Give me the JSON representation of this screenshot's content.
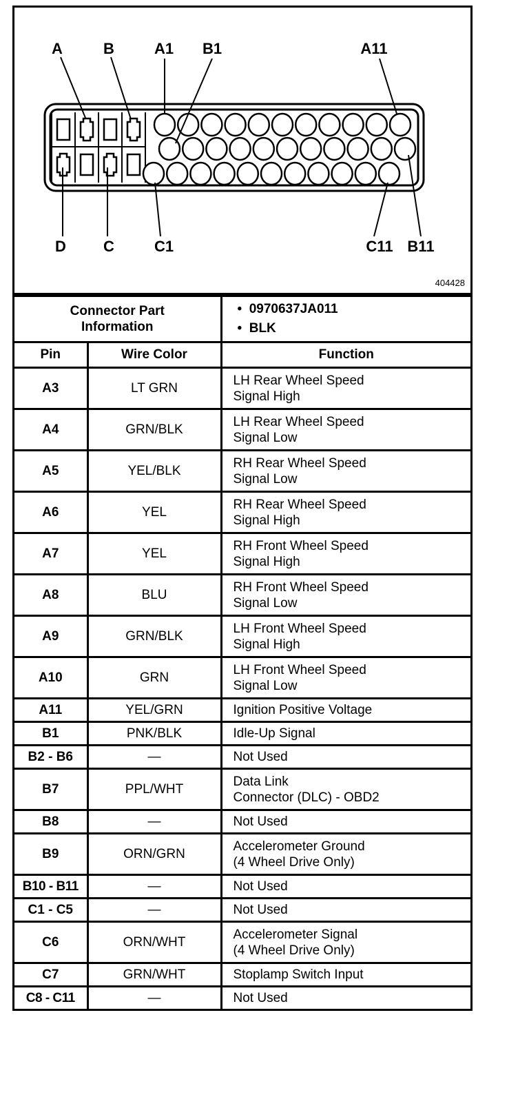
{
  "diagram": {
    "labels_top": [
      "A",
      "B",
      "A1",
      "B1",
      "A11"
    ],
    "labels_bottom": [
      "D",
      "C",
      "C1",
      "C11",
      "B11"
    ],
    "document_number": "404428"
  },
  "connector_info": {
    "caption_line1": "Connector Part",
    "caption_line2": "Information",
    "part_number": "0970637JA011",
    "color": "BLK"
  },
  "table": {
    "headers": {
      "pin": "Pin",
      "wire_color": "Wire Color",
      "function": "Function"
    },
    "rows": [
      {
        "pin": "A3",
        "wire": "LT GRN",
        "func": [
          "LH Rear Wheel Speed",
          "Signal High"
        ]
      },
      {
        "pin": "A4",
        "wire": "GRN/BLK",
        "func": [
          "LH Rear Wheel Speed",
          "Signal Low"
        ]
      },
      {
        "pin": "A5",
        "wire": "YEL/BLK",
        "func": [
          "RH Rear Wheel Speed",
          "Signal Low"
        ]
      },
      {
        "pin": "A6",
        "wire": "YEL",
        "func": [
          "RH Rear Wheel Speed",
          "Signal High"
        ]
      },
      {
        "pin": "A7",
        "wire": "YEL",
        "func": [
          "RH Front Wheel Speed",
          "Signal High"
        ]
      },
      {
        "pin": "A8",
        "wire": "BLU",
        "func": [
          "RH Front Wheel Speed",
          "Signal Low"
        ]
      },
      {
        "pin": "A9",
        "wire": "GRN/BLK",
        "func": [
          "LH Front Wheel Speed",
          "Signal High"
        ]
      },
      {
        "pin": "A10",
        "wire": "GRN",
        "func": [
          "LH Front Wheel Speed",
          "Signal Low"
        ]
      },
      {
        "pin": "A11",
        "wire": "YEL/GRN",
        "func": [
          "Ignition Positive Voltage"
        ]
      },
      {
        "pin": "B1",
        "wire": "PNK/BLK",
        "func": [
          "Idle-Up Signal"
        ]
      },
      {
        "pin": "B2 - B6",
        "wire": "—",
        "func": [
          "Not Used"
        ]
      },
      {
        "pin": "B7",
        "wire": "PPL/WHT",
        "func": [
          "Data Link",
          "Connector (DLC) - OBD2"
        ]
      },
      {
        "pin": "B8",
        "wire": "—",
        "func": [
          "Not Used"
        ]
      },
      {
        "pin": "B9",
        "wire": "ORN/GRN",
        "func": [
          "Accelerometer Ground",
          "(4 Wheel Drive Only)"
        ]
      },
      {
        "pin": "B10 - B11",
        "wire": "—",
        "func": [
          "Not Used"
        ]
      },
      {
        "pin": "C1 - C5",
        "wire": "—",
        "func": [
          "Not Used"
        ]
      },
      {
        "pin": "C6",
        "wire": "ORN/WHT",
        "func": [
          "Accelerometer Signal",
          "(4 Wheel Drive Only)"
        ]
      },
      {
        "pin": "C7",
        "wire": "GRN/WHT",
        "func": [
          "Stoplamp Switch Input"
        ]
      },
      {
        "pin": "C8 - C11",
        "wire": "—",
        "func": [
          "Not Used"
        ]
      }
    ]
  }
}
